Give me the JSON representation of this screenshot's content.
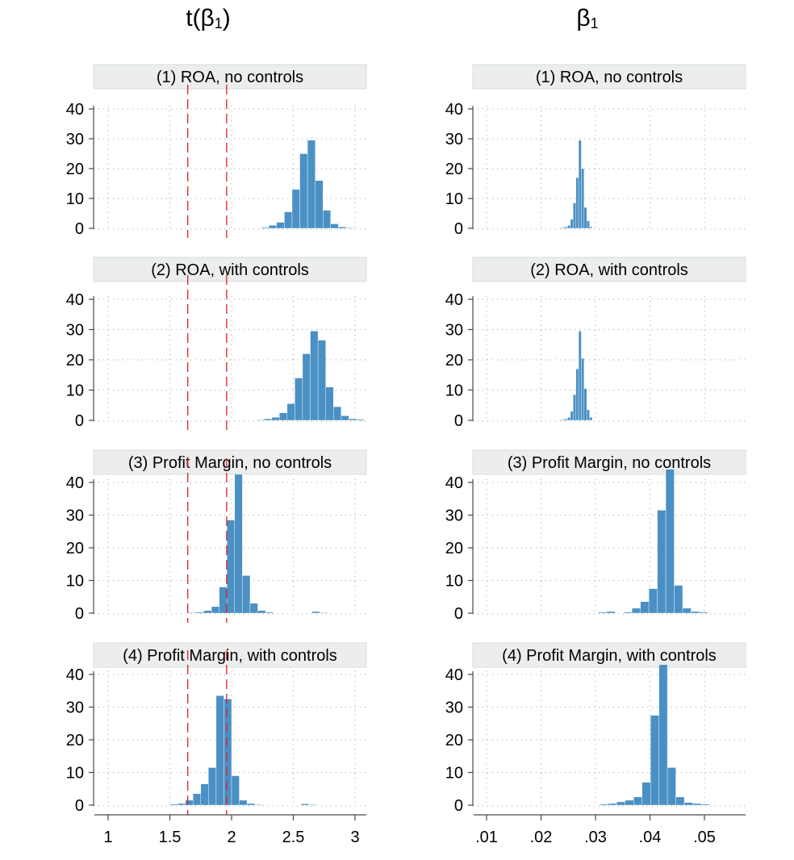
{
  "col_titles": {
    "left": "t(β",
    "left_sub": "1",
    "left_close": ")",
    "right": "β",
    "right_sub": "1"
  },
  "colors": {
    "bar": "#4a90c4",
    "reference_line": "#e01f26",
    "strip": "#eceeee"
  },
  "chart_data": [
    {
      "type": "bar",
      "title": "(1) ROA, no controls",
      "column": "left",
      "xlim": [
        1,
        3
      ],
      "xticks": [
        "1",
        "1.5",
        "2",
        "2.5",
        "3"
      ],
      "ylim": [
        0,
        40
      ],
      "yticks": [
        "0",
        "10",
        "20",
        "30",
        "40"
      ],
      "reference_lines": [
        1.645,
        1.96
      ],
      "bin_start": 2.24,
      "bin_width": 0.0625,
      "values": [
        0.3,
        1,
        2,
        5.5,
        13,
        25,
        29.5,
        16,
        6,
        1.5,
        0.5,
        0.2
      ]
    },
    {
      "type": "bar",
      "title": "(1) ROA, no controls",
      "column": "right",
      "xlim": [
        0.005,
        0.058
      ],
      "xticks": [
        ".01",
        ".02",
        ".03",
        ".04",
        ".05"
      ],
      "ylim": [
        0,
        40
      ],
      "yticks": [
        "0",
        "10",
        "20",
        "30",
        "40"
      ],
      "bin_start": 0.0234,
      "bin_width": 0.0005,
      "values": [
        0.2,
        0.3,
        0.5,
        1,
        3,
        8.5,
        17,
        29.5,
        20,
        7,
        2.5,
        0.5
      ]
    },
    {
      "type": "bar",
      "title": "(2) ROA, with controls",
      "column": "left",
      "xlim": [
        1,
        3
      ],
      "xticks": [
        "1",
        "1.5",
        "2",
        "2.5",
        "3"
      ],
      "ylim": [
        0,
        40
      ],
      "yticks": [
        "0",
        "10",
        "20",
        "30",
        "40"
      ],
      "reference_lines": [
        1.645,
        1.96
      ],
      "bin_start": 2.2,
      "bin_width": 0.0625,
      "values": [
        0.2,
        0.5,
        1,
        2.5,
        5.5,
        14,
        22,
        29.5,
        26.5,
        11,
        4.5,
        1.5,
        0.5,
        0.3
      ]
    },
    {
      "type": "bar",
      "title": "(2) ROA, with controls",
      "column": "right",
      "xlim": [
        0.005,
        0.058
      ],
      "xticks": [
        ".01",
        ".02",
        ".03",
        ".04",
        ".05"
      ],
      "ylim": [
        0,
        40
      ],
      "yticks": [
        "0",
        "10",
        "20",
        "30",
        "40"
      ],
      "bin_start": 0.0234,
      "bin_width": 0.0005,
      "values": [
        0.2,
        0.3,
        0.5,
        1,
        3,
        8.5,
        17,
        29.5,
        20.5,
        10.5,
        3.5,
        1
      ]
    },
    {
      "type": "bar",
      "title": "(3) Profit Margin, no controls",
      "column": "left",
      "xlim": [
        1,
        3
      ],
      "xticks": [
        "1",
        "1.5",
        "2",
        "2.5",
        "3"
      ],
      "ylim": [
        0,
        40
      ],
      "yticks": [
        "0",
        "10",
        "20",
        "30",
        "40"
      ],
      "reference_lines": [
        1.645,
        1.96
      ],
      "bin_start": 1.65,
      "bin_width": 0.0625,
      "values": [
        0.2,
        0.3,
        0.8,
        2,
        8,
        28.5,
        42.5,
        11.5,
        3,
        0.8,
        0.3,
        0,
        0,
        0,
        0,
        0,
        0.5,
        0.2
      ]
    },
    {
      "type": "bar",
      "title": "(3) Profit Margin, no controls",
      "column": "right",
      "xlim": [
        0.005,
        0.058
      ],
      "xticks": [
        ".01",
        ".02",
        ".03",
        ".04",
        ".05"
      ],
      "ylim": [
        0,
        40
      ],
      "yticks": [
        "0",
        "10",
        "20",
        "30",
        "40"
      ],
      "bin_start": 0.0305,
      "bin_width": 0.00155,
      "values": [
        0.3,
        0.5,
        0,
        0.3,
        1.5,
        3.5,
        7.5,
        31.5,
        44,
        8.5,
        1.5,
        0.5,
        0.3
      ]
    },
    {
      "type": "bar",
      "title": "(4) Profit Margin, with controls",
      "column": "left",
      "xlim": [
        1,
        3
      ],
      "xticks": [
        "1",
        "1.5",
        "2",
        "2.5",
        "3"
      ],
      "ylim": [
        0,
        40
      ],
      "yticks": [
        "0",
        "10",
        "20",
        "30",
        "40"
      ],
      "reference_lines": [
        1.645,
        1.96
      ],
      "bin_start": 1.5,
      "bin_width": 0.0625,
      "values": [
        0.3,
        0.5,
        1.5,
        3.5,
        6.5,
        11.5,
        33.5,
        32.5,
        9,
        1.5,
        0.5,
        0.2,
        0,
        0,
        0,
        0,
        0,
        0.4,
        0.2
      ]
    },
    {
      "type": "bar",
      "title": "(4) Profit Margin, with controls",
      "column": "right",
      "xlim": [
        0.005,
        0.058
      ],
      "xticks": [
        ".01",
        ".02",
        ".03",
        ".04",
        ".05"
      ],
      "ylim": [
        0,
        40
      ],
      "yticks": [
        "0",
        "10",
        "20",
        "30",
        "40"
      ],
      "bin_start": 0.0308,
      "bin_width": 0.00155,
      "values": [
        0.3,
        0.5,
        1,
        1.5,
        2.5,
        7,
        27.5,
        43,
        11.5,
        2.5,
        0.8,
        0.5,
        0.3
      ]
    }
  ]
}
